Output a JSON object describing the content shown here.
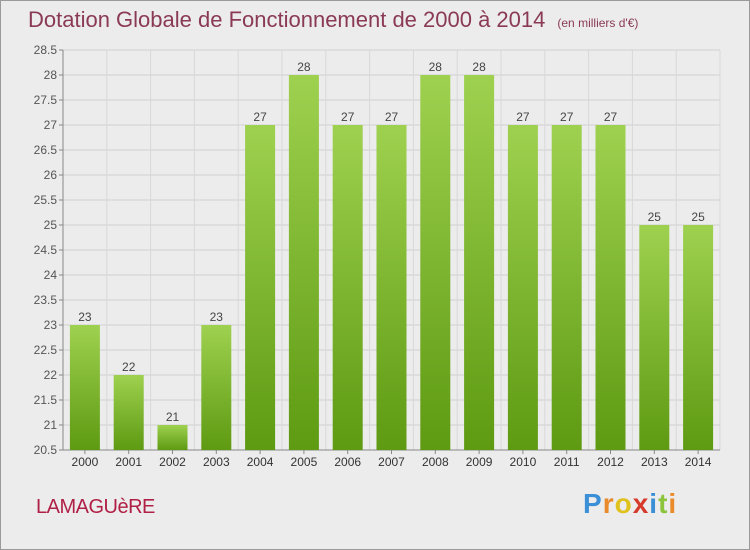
{
  "header": {
    "title": "Dotation Globale de Fonctionnement de 2000 à 2014",
    "unit": "(en milliers d'€)"
  },
  "footer": {
    "commune": "LAMAGUèRE",
    "logo": "Proxiti",
    "logo_letters": [
      {
        "ch": "P",
        "color": "#3b8fd6"
      },
      {
        "ch": "r",
        "color": "#e98b2a"
      },
      {
        "ch": "o",
        "color": "#e0c21e"
      },
      {
        "ch": "x",
        "color": "#d63a2a"
      },
      {
        "ch": "i",
        "color": "#3b8fd6"
      },
      {
        "ch": "t",
        "color": "#8cc43c"
      },
      {
        "ch": "i",
        "color": "#e98b2a"
      }
    ]
  },
  "chart_data": {
    "type": "bar",
    "categories": [
      "2000",
      "2001",
      "2002",
      "2003",
      "2004",
      "2005",
      "2006",
      "2007",
      "2008",
      "2009",
      "2010",
      "2011",
      "2012",
      "2013",
      "2014"
    ],
    "values": [
      23,
      22,
      21,
      23,
      27,
      28,
      27,
      27,
      28,
      28,
      27,
      27,
      27,
      25,
      25
    ],
    "ylim": [
      20.5,
      28.5
    ],
    "yticks": [
      "20.5",
      "21",
      "21.5",
      "22",
      "22.5",
      "23",
      "23.5",
      "24",
      "24.5",
      "25",
      "25.5",
      "26",
      "26.5",
      "27",
      "27.5",
      "28",
      "28.5"
    ],
    "grid": true,
    "bar_color_top": "#9ed14f",
    "bar_color_bottom": "#5e9a12"
  }
}
